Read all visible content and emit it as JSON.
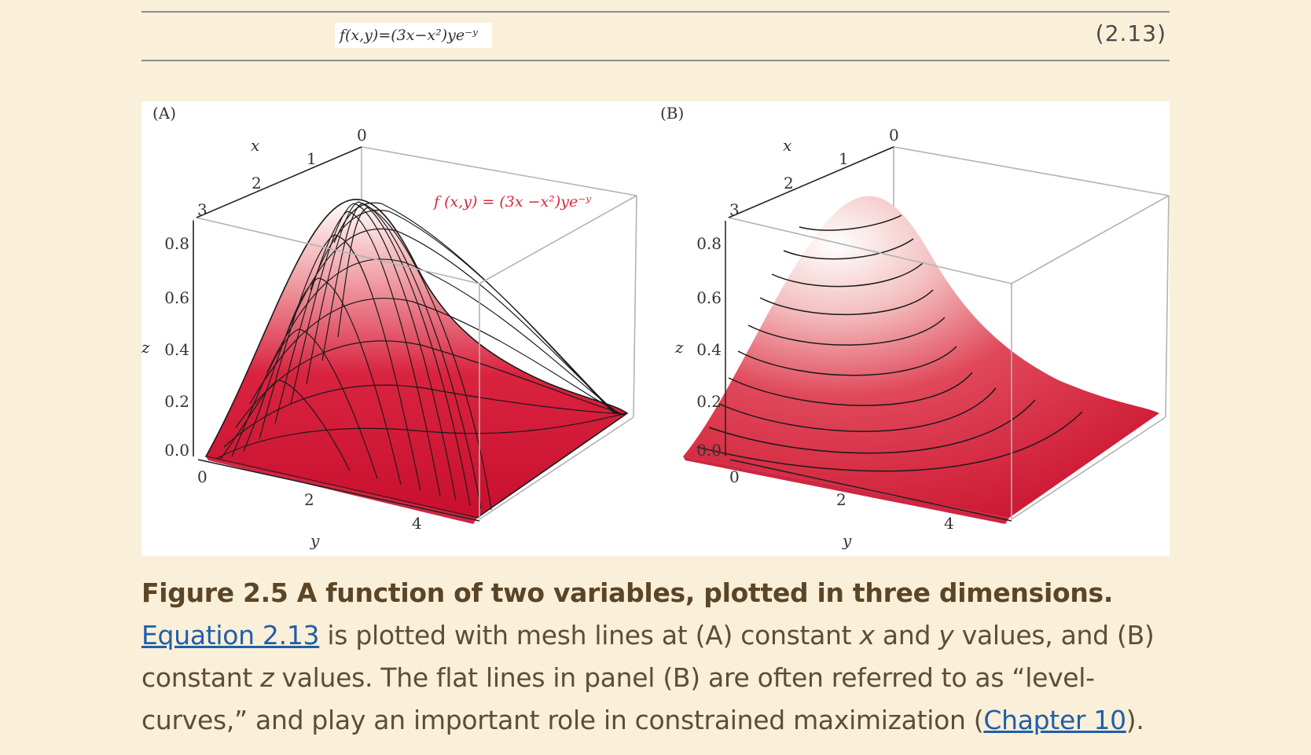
{
  "equation": {
    "image_text": "f(x,y)=(3x−x²)ye⁻ʸ",
    "number": "(2.13)"
  },
  "figure": {
    "panel_a": {
      "label": "(A)",
      "function_label": "f (x,y) = (3x −x²)ye⁻ʸ",
      "x_axis_label": "x",
      "y_axis_label": "y",
      "z_axis_label": "z",
      "x_ticks": [
        "0",
        "1",
        "2",
        "3"
      ],
      "y_ticks": [
        "0",
        "2",
        "4"
      ],
      "z_ticks": [
        "0.0",
        "0.2",
        "0.4",
        "0.6",
        "0.8"
      ]
    },
    "panel_b": {
      "label": "(B)",
      "x_axis_label": "x",
      "y_axis_label": "y",
      "z_axis_label": "z",
      "x_ticks": [
        "0",
        "1",
        "2",
        "3"
      ],
      "y_ticks": [
        "0",
        "2",
        "4"
      ],
      "z_ticks": [
        "0.0",
        "0.2",
        "0.4",
        "0.6",
        "0.8"
      ]
    },
    "colors": {
      "surface_dark": "#d11a3a",
      "surface_light": "#ffffff",
      "mesh": "#1a1a1a",
      "function_label": "#d8283c",
      "box": "#b3b3b3"
    }
  },
  "caption": {
    "title": "Figure 2.5 A function of two variables, plotted in three dimensions.",
    "link1": "Equation 2.13",
    "text1": " is plotted with mesh lines at (A) constant ",
    "var_x": "x",
    "text2": " and ",
    "var_y": "y",
    "text3": " values, and (B) constant ",
    "var_z": "z",
    "text4": " values. The flat lines in panel (B) are often referred to as “level-curves,” and play an important role in constrained maximization (",
    "link2": "Chapter 10",
    "text5": ")."
  }
}
